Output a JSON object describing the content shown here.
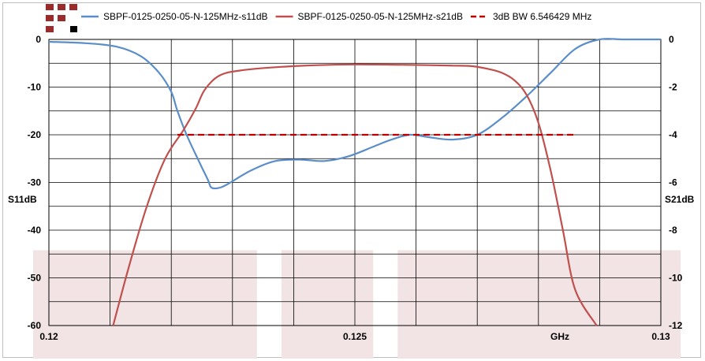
{
  "chart_data": {
    "type": "line",
    "xunit": "GHz",
    "x_ticks": [
      "0.12",
      "0.125",
      "0.13"
    ],
    "xlim": [
      0.12,
      0.13
    ],
    "y_left": {
      "label": "S11dB",
      "ticks": [
        "0",
        "-10",
        "-20",
        "-30",
        "-40",
        "-50",
        "-60"
      ],
      "lim": [
        -60,
        0
      ]
    },
    "y_right": {
      "label": "S21dB",
      "ticks": [
        "0",
        "-2",
        "-4",
        "-6",
        "-8",
        "-10",
        "-12"
      ],
      "lim": [
        -12,
        0
      ]
    },
    "grid": true,
    "legend_position": "top",
    "shaded_bands": [
      [
        0.12,
        0.1234
      ],
      [
        0.1238,
        0.1253
      ],
      [
        0.1257,
        0.13
      ]
    ],
    "series": [
      {
        "name": "SBPF-0125-0250-05-N-125MHz-s11dB",
        "axis": "left",
        "color": "#5b8ec9",
        "x": [
          0.12,
          0.1206,
          0.1211,
          0.1215,
          0.1218,
          0.122,
          0.1221,
          0.12225,
          0.12245,
          0.1226,
          0.12265,
          0.12275,
          0.1229,
          0.1233,
          0.1237,
          0.1241,
          0.1245,
          0.1249,
          0.1253,
          0.1256,
          0.1259,
          0.1262,
          0.1266,
          0.127,
          0.1274,
          0.1278,
          0.1282,
          0.1286,
          0.129,
          0.1294,
          0.13
        ],
        "y": [
          -0.5,
          -0.8,
          -1.5,
          -3.5,
          -7.0,
          -11.0,
          -15.0,
          -20.0,
          -25.5,
          -29.5,
          -31.0,
          -31.2,
          -30.5,
          -27.5,
          -25.5,
          -25.2,
          -25.5,
          -24.5,
          -22.5,
          -21.0,
          -20.0,
          -20.5,
          -21.0,
          -20.0,
          -16.5,
          -12.0,
          -7.0,
          -2.0,
          0.0,
          0.0,
          0.0
        ]
      },
      {
        "name": "SBPF-0125-0250-05-N-125MHz-s21dB",
        "axis": "right",
        "color": "#c0504d",
        "x": [
          0.12105,
          0.1213,
          0.1216,
          0.1219,
          0.1222,
          0.1224,
          0.12255,
          0.1228,
          0.1232,
          0.1238,
          0.1244,
          0.125,
          0.1256,
          0.1262,
          0.1266,
          0.1269,
          0.1272,
          0.1274,
          0.1276,
          0.1278,
          0.128,
          0.1282,
          0.1284,
          0.1286,
          0.12895
        ],
        "y": [
          -12.0,
          -9.6,
          -7.0,
          -5.0,
          -3.8,
          -2.9,
          -2.1,
          -1.5,
          -1.28,
          -1.15,
          -1.08,
          -1.05,
          -1.06,
          -1.08,
          -1.1,
          -1.12,
          -1.25,
          -1.4,
          -1.7,
          -2.3,
          -3.5,
          -5.5,
          -8.0,
          -10.5,
          -12.0
        ]
      },
      {
        "name": "3dB BW 6.546429 MHz",
        "axis": "right",
        "color": "#c00000",
        "dashed": true,
        "x": [
          0.1221,
          0.1286
        ],
        "y": [
          -4.0,
          -4.0
        ]
      }
    ]
  }
}
